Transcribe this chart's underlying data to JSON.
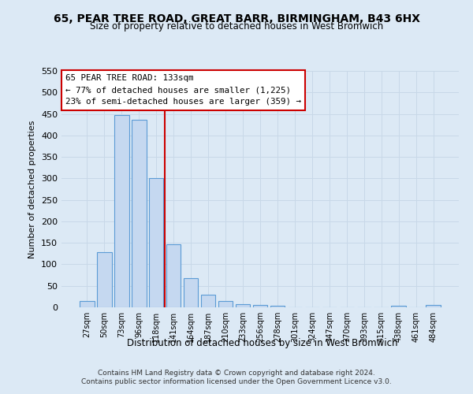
{
  "title": "65, PEAR TREE ROAD, GREAT BARR, BIRMINGHAM, B43 6HX",
  "subtitle": "Size of property relative to detached houses in West Bromwich",
  "xlabel": "Distribution of detached houses by size in West Bromwich",
  "ylabel": "Number of detached properties",
  "bar_labels": [
    "27sqm",
    "50sqm",
    "73sqm",
    "96sqm",
    "118sqm",
    "141sqm",
    "164sqm",
    "187sqm",
    "210sqm",
    "233sqm",
    "256sqm",
    "278sqm",
    "301sqm",
    "324sqm",
    "347sqm",
    "370sqm",
    "393sqm",
    "415sqm",
    "438sqm",
    "461sqm",
    "484sqm"
  ],
  "bar_values": [
    15,
    128,
    447,
    437,
    300,
    147,
    68,
    30,
    15,
    8,
    5,
    4,
    0,
    0,
    0,
    0,
    0,
    0,
    4,
    0,
    5
  ],
  "bar_color": "#c5d8f0",
  "bar_edge_color": "#5b9bd5",
  "grid_color": "#c8d8e8",
  "background_color": "#dce9f5",
  "vline_color": "#cc0000",
  "annotation_title": "65 PEAR TREE ROAD: 133sqm",
  "annotation_line1": "← 77% of detached houses are smaller (1,225)",
  "annotation_line2": "23% of semi-detached houses are larger (359) →",
  "annotation_box_color": "#ffffff",
  "annotation_box_edge": "#cc0000",
  "ylim": [
    0,
    550
  ],
  "yticks": [
    0,
    50,
    100,
    150,
    200,
    250,
    300,
    350,
    400,
    450,
    500,
    550
  ],
  "footer1": "Contains HM Land Registry data © Crown copyright and database right 2024.",
  "footer2": "Contains public sector information licensed under the Open Government Licence v3.0."
}
